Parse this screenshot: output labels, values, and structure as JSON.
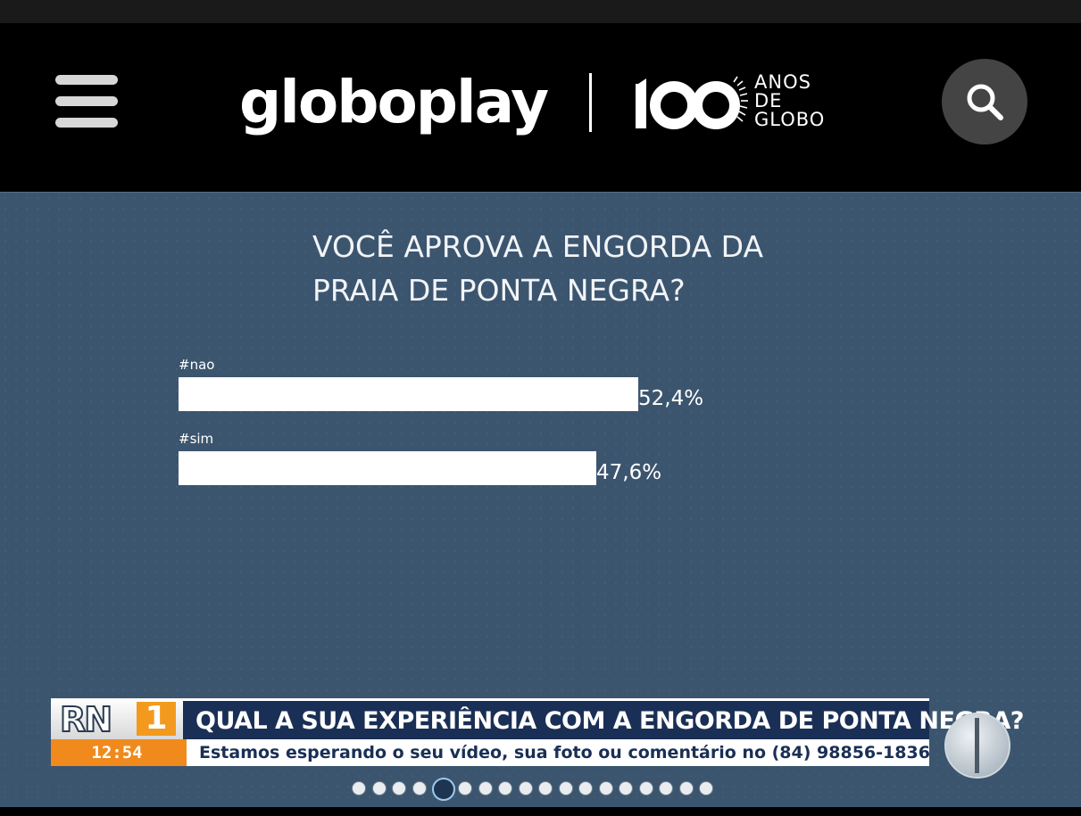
{
  "header": {
    "logo_text": "globoplay",
    "anniversary_number": "100",
    "anniversary_lines": [
      "ANOS",
      "DE",
      "GLOBO"
    ],
    "menu_icon": "hamburger-menu-icon",
    "search_icon": "search-icon"
  },
  "poll": {
    "question_line1": "VOCÊ APROVA A ENGORDA DA",
    "question_line2": "PRAIA DE PONTA NEGRA?",
    "options": [
      {
        "label": "#nao",
        "value_text": "52,4%",
        "percent": 52.4
      },
      {
        "label": "#sim",
        "value_text": "47,6%",
        "percent": 47.6
      }
    ]
  },
  "ticker": {
    "program_logo_text": "RN",
    "program_logo_number": "1",
    "time": "12:54",
    "headline": "QUAL A SUA EXPERIÊNCIA COM A ENGORDA DE PONTA NEGRA?",
    "subline": "Estamos esperando o seu vídeo, sua foto ou comentário no (84) 98856-1836"
  },
  "colors": {
    "video_background": "#3c556f",
    "ticker_navy": "#1a2f55",
    "ticker_orange": "#f08a1c"
  }
}
